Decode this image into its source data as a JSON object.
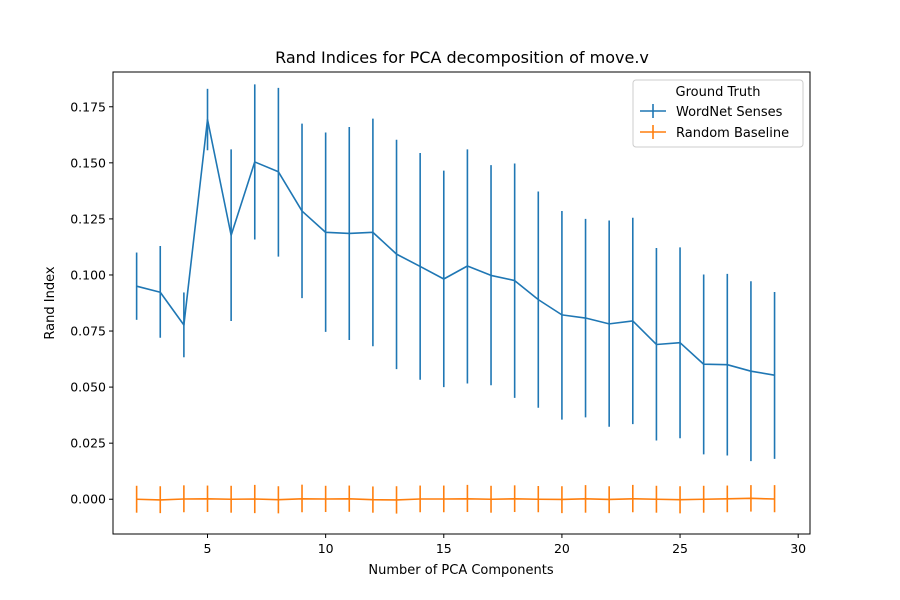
{
  "chart_data": {
    "type": "line",
    "title": "Rand Indices for PCA decomposition of move.v",
    "xlabel": "Number of PCA Components",
    "ylabel": "Rand Index",
    "xlim": [
      1,
      30.5
    ],
    "ylim": [
      -0.0155,
      0.1905
    ],
    "x_ticks": [
      5,
      10,
      15,
      20,
      25,
      30
    ],
    "x_tick_labels": [
      "5",
      "10",
      "15",
      "20",
      "25",
      "30"
    ],
    "y_ticks": [
      0.0,
      0.025,
      0.05,
      0.075,
      0.1,
      0.125,
      0.15,
      0.175
    ],
    "y_tick_labels": [
      "0.000",
      "0.025",
      "0.050",
      "0.075",
      "0.100",
      "0.125",
      "0.150",
      "0.175"
    ],
    "grid": false,
    "legend": {
      "title": "Ground Truth",
      "placement": "top-right"
    },
    "x": [
      2,
      3,
      4,
      5,
      6,
      7,
      8,
      9,
      10,
      11,
      12,
      13,
      14,
      15,
      16,
      17,
      18,
      19,
      20,
      21,
      22,
      23,
      24,
      25,
      26,
      27,
      28,
      29
    ],
    "series": [
      {
        "name": "WordNet Senses",
        "color": "#1f77b4",
        "values": [
          0.095,
          0.0923,
          0.0777,
          0.1693,
          0.1177,
          0.1504,
          0.146,
          0.1285,
          0.119,
          0.1185,
          0.119,
          0.1093,
          0.1038,
          0.0982,
          0.104,
          0.0998,
          0.0975,
          0.089,
          0.0822,
          0.0808,
          0.0782,
          0.0795,
          0.069,
          0.0698,
          0.0602,
          0.06,
          0.0571,
          0.0553
        ],
        "err_low": [
          0.08,
          0.072,
          0.0633,
          0.1556,
          0.0795,
          0.1158,
          0.1082,
          0.0897,
          0.0746,
          0.071,
          0.0682,
          0.058,
          0.0533,
          0.05,
          0.0516,
          0.0508,
          0.0452,
          0.0408,
          0.0355,
          0.0365,
          0.0323,
          0.0335,
          0.0262,
          0.0272,
          0.02,
          0.0195,
          0.017,
          0.018
        ],
        "err_high": [
          0.11,
          0.1129,
          0.0922,
          0.183,
          0.156,
          0.185,
          0.1834,
          0.1675,
          0.1635,
          0.166,
          0.1697,
          0.1603,
          0.1544,
          0.1465,
          0.156,
          0.149,
          0.1497,
          0.1372,
          0.1285,
          0.125,
          0.1243,
          0.1255,
          0.112,
          0.1123,
          0.1002,
          0.1005,
          0.0972,
          0.0924
        ]
      },
      {
        "name": "Random Baseline",
        "color": "#ff7f0e",
        "values": [
          0.0,
          -0.0003,
          0.0001,
          0.0002,
          0.0,
          0.0001,
          -0.0002,
          0.0002,
          0.0001,
          0.0002,
          -0.0002,
          -0.0003,
          0.0001,
          0.0001,
          0.0002,
          0.0,
          0.0002,
          0.0,
          -0.0001,
          0.0002,
          -0.0001,
          0.0002,
          0.0,
          -0.0002,
          0.0,
          0.0002,
          0.0004,
          0.0001
        ],
        "err_low": [
          -0.006,
          -0.0062,
          -0.0058,
          -0.0057,
          -0.006,
          -0.0062,
          -0.0063,
          -0.0058,
          -0.0057,
          -0.0056,
          -0.006,
          -0.0064,
          -0.0058,
          -0.0058,
          -0.0057,
          -0.006,
          -0.0057,
          -0.0058,
          -0.0062,
          -0.006,
          -0.0062,
          -0.0058,
          -0.006,
          -0.0063,
          -0.006,
          -0.0058,
          -0.0055,
          -0.0058
        ],
        "err_high": [
          0.006,
          0.0058,
          0.0062,
          0.0061,
          0.006,
          0.0064,
          0.0058,
          0.0065,
          0.006,
          0.0061,
          0.0057,
          0.0058,
          0.0061,
          0.0061,
          0.0064,
          0.006,
          0.0062,
          0.0059,
          0.0058,
          0.0063,
          0.0058,
          0.0064,
          0.006,
          0.0058,
          0.006,
          0.0061,
          0.0063,
          0.0063
        ]
      }
    ]
  }
}
